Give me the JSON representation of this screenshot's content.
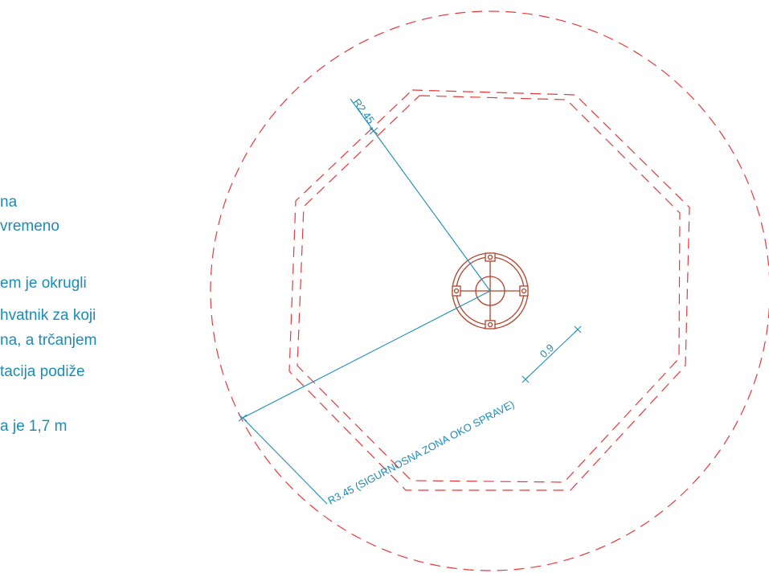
{
  "description_lines": [
    "na",
    "vremeno",
    "",
    "em je okrugli",
    "hvatnik za koji",
    "na, a trčanjem",
    "tacija podiže",
    "",
    "a je 1,7 m"
  ],
  "dimensions": {
    "inner_radius": "R2.45",
    "outer_radius": "R3.45 (SIGURNOSNA ZONA OKO SPRAVE)",
    "width": "0.9"
  },
  "colors": {
    "dimension": "#1a8cb8",
    "zone": "#e8383a",
    "equipment": "#b5402a"
  }
}
